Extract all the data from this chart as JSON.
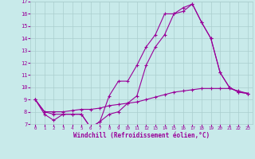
{
  "xlabel": "Windchill (Refroidissement éolien,°C)",
  "bg_color": "#c8eaea",
  "grid_color": "#aacece",
  "line_color": "#990099",
  "xlim": [
    -0.5,
    23.5
  ],
  "ylim": [
    7,
    17
  ],
  "xticks": [
    0,
    1,
    2,
    3,
    4,
    5,
    6,
    7,
    8,
    9,
    10,
    11,
    12,
    13,
    14,
    15,
    16,
    17,
    18,
    19,
    20,
    21,
    22,
    23
  ],
  "yticks": [
    7,
    8,
    9,
    10,
    11,
    12,
    13,
    14,
    15,
    16,
    17
  ],
  "line1_x": [
    0,
    1,
    2,
    3,
    4,
    5,
    6,
    7,
    8,
    9,
    10,
    11,
    12,
    13,
    14,
    15,
    16,
    17,
    18,
    19,
    20,
    21,
    22,
    23
  ],
  "line1_y": [
    9.0,
    7.8,
    7.3,
    7.8,
    7.8,
    7.8,
    6.7,
    7.2,
    9.3,
    10.5,
    10.5,
    11.8,
    13.3,
    14.3,
    16.0,
    16.0,
    16.2,
    16.8,
    15.3,
    14.0,
    11.2,
    10.0,
    9.6,
    9.5
  ],
  "line2_x": [
    0,
    1,
    2,
    3,
    4,
    5,
    6,
    7,
    8,
    9,
    10,
    11,
    12,
    13,
    14,
    15,
    16,
    17,
    18,
    19,
    20,
    21,
    22,
    23
  ],
  "line2_y": [
    9.0,
    8.0,
    8.0,
    8.0,
    8.1,
    8.2,
    8.2,
    8.3,
    8.5,
    8.6,
    8.7,
    8.8,
    9.0,
    9.2,
    9.4,
    9.6,
    9.7,
    9.8,
    9.9,
    9.9,
    9.9,
    9.9,
    9.7,
    9.5
  ],
  "line3_x": [
    0,
    1,
    2,
    3,
    4,
    5,
    6,
    7,
    8,
    9,
    10,
    11,
    12,
    13,
    14,
    15,
    16,
    17,
    18,
    19,
    20,
    21,
    22,
    23
  ],
  "line3_y": [
    9.0,
    8.0,
    7.8,
    7.8,
    7.8,
    7.8,
    6.7,
    7.2,
    7.8,
    8.0,
    8.7,
    9.3,
    11.8,
    13.3,
    14.3,
    16.0,
    16.5,
    16.8,
    15.3,
    14.0,
    11.2,
    10.0,
    9.6,
    9.5
  ]
}
